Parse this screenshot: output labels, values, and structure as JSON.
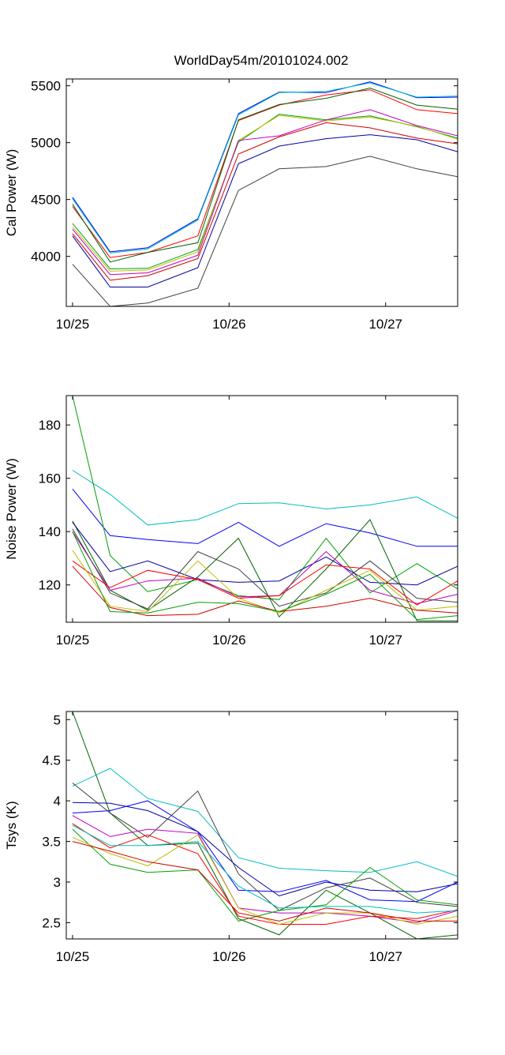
{
  "figure_title": "WorldDay54m/20101024.002",
  "series_colors": [
    "#0000ff",
    "#00a000",
    "#ff0000",
    "#00bfbf",
    "#bf00bf",
    "#bfbf00",
    "#404040",
    "#0000a0",
    "#006400",
    "#d00000"
  ],
  "chart_data": [
    {
      "type": "line",
      "title": "WorldDay54m/20101024.002",
      "ylabel": "Cal Power (W)",
      "xlabel": "",
      "x": [
        0.0,
        0.24,
        0.48,
        0.8,
        1.06,
        1.32,
        1.62,
        1.9,
        2.2,
        2.46
      ],
      "xlim": [
        -0.04,
        2.46
      ],
      "ylim": [
        3560,
        5560
      ],
      "xticks": [
        {
          "value": 0,
          "label": "10/25"
        },
        {
          "value": 1,
          "label": "10/26"
        },
        {
          "value": 2,
          "label": "10/27"
        }
      ],
      "yticks": [
        {
          "value": 4000,
          "label": "4000"
        },
        {
          "value": 4500,
          "label": "4500"
        },
        {
          "value": 5000,
          "label": "5000"
        },
        {
          "value": 5500,
          "label": "5500"
        }
      ],
      "grid": false,
      "series": [
        {
          "color": "#0000ff",
          "values": [
            4520,
            4040,
            4075,
            4330,
            5255,
            5445,
            5440,
            5535,
            5395,
            5400
          ]
        },
        {
          "color": "#00bfbf",
          "values": [
            4505,
            4030,
            4065,
            4320,
            5245,
            5440,
            5450,
            5525,
            5400,
            5410
          ]
        },
        {
          "color": "#ff0000",
          "values": [
            4440,
            3990,
            4035,
            4180,
            5195,
            5330,
            5420,
            5465,
            5290,
            5255
          ]
        },
        {
          "color": "#006400",
          "values": [
            4460,
            3950,
            4035,
            4120,
            5200,
            5335,
            5390,
            5480,
            5330,
            5295
          ]
        },
        {
          "color": "#00a000",
          "values": [
            4290,
            3890,
            3895,
            4060,
            5005,
            5250,
            5200,
            5235,
            5140,
            5040
          ]
        },
        {
          "color": "#bfbf00",
          "values": [
            4260,
            3870,
            3880,
            4040,
            5020,
            5240,
            5190,
            5225,
            5145,
            5030
          ]
        },
        {
          "color": "#bf00bf",
          "values": [
            4240,
            3840,
            3855,
            4010,
            5020,
            5060,
            5200,
            5290,
            5150,
            5060
          ]
        },
        {
          "color": "#d00000",
          "values": [
            4200,
            3790,
            3830,
            3980,
            4900,
            5050,
            5175,
            5130,
            5040,
            4990
          ]
        },
        {
          "color": "#0000a0",
          "values": [
            4180,
            3730,
            3730,
            3900,
            4815,
            4970,
            5035,
            5070,
            5025,
            4920
          ]
        },
        {
          "color": "#404040",
          "values": [
            3930,
            3560,
            3590,
            3720,
            4580,
            4770,
            4790,
            4880,
            4770,
            4700
          ]
        }
      ]
    },
    {
      "type": "line",
      "title": "",
      "ylabel": "Noise Power (W)",
      "xlabel": "",
      "x": [
        0.0,
        0.24,
        0.48,
        0.8,
        1.06,
        1.32,
        1.62,
        1.9,
        2.2,
        2.46
      ],
      "xlim": [
        -0.04,
        2.46
      ],
      "ylim": [
        106,
        191
      ],
      "xticks": [
        {
          "value": 0,
          "label": "10/25"
        },
        {
          "value": 1,
          "label": "10/26"
        },
        {
          "value": 2,
          "label": "10/27"
        }
      ],
      "yticks": [
        {
          "value": 120,
          "label": "120"
        },
        {
          "value": 140,
          "label": "140"
        },
        {
          "value": 160,
          "label": "160"
        },
        {
          "value": 180,
          "label": "180"
        }
      ],
      "grid": false,
      "series": [
        {
          "color": "#00bfbf",
          "values": [
            163,
            154,
            142.5,
            144.5,
            150.5,
            150.8,
            148.5,
            150,
            153,
            145
          ]
        },
        {
          "color": "#0000ff",
          "values": [
            156,
            138.5,
            137,
            135.5,
            143.5,
            134.5,
            143,
            139.5,
            134.5,
            134.5
          ]
        },
        {
          "color": "#00a000",
          "values": [
            191,
            131,
            117.5,
            122,
            116,
            114.5,
            137.5,
            117,
            128,
            118.5
          ]
        },
        {
          "color": "#006400",
          "values": [
            144,
            118,
            110.5,
            123,
            137.5,
            108,
            126,
            144.5,
            106.5,
            106.5
          ]
        },
        {
          "color": "#0000a0",
          "values": [
            143.5,
            125,
            129,
            122,
            121,
            121.5,
            130.5,
            121,
            120,
            127
          ]
        },
        {
          "color": "#bf00bf",
          "values": [
            140,
            118,
            121.5,
            122.5,
            115.5,
            116,
            132.5,
            118,
            113,
            116.5
          ]
        },
        {
          "color": "#404040",
          "values": [
            141,
            117,
            111,
            132.5,
            126,
            112,
            117,
            129,
            115,
            113.5
          ]
        },
        {
          "color": "#ff0000",
          "values": [
            129,
            119,
            125.5,
            122,
            115,
            116,
            127.5,
            126,
            112.5,
            121.5
          ]
        },
        {
          "color": "#bfbf00",
          "values": [
            133,
            112,
            110,
            129,
            115,
            109.5,
            118,
            125.5,
            110.5,
            112
          ]
        },
        {
          "color": "#d00000",
          "values": [
            127,
            111.5,
            108.5,
            109,
            114,
            110,
            112,
            115,
            110.5,
            109.5
          ]
        },
        {
          "color": "#00a000",
          "values": [
            140,
            110,
            109.5,
            113.5,
            113,
            110,
            116.5,
            124,
            107,
            108.5
          ]
        }
      ]
    },
    {
      "type": "line",
      "title": "",
      "ylabel": "Tsys (K)",
      "xlabel": "",
      "x": [
        0.0,
        0.24,
        0.48,
        0.8,
        1.06,
        1.32,
        1.62,
        1.9,
        2.2,
        2.46
      ],
      "xlim": [
        -0.04,
        2.46
      ],
      "ylim": [
        2.3,
        5.1
      ],
      "xticks": [
        {
          "value": 0,
          "label": "10/25"
        },
        {
          "value": 1,
          "label": "10/26"
        },
        {
          "value": 2,
          "label": "10/27"
        }
      ],
      "yticks": [
        {
          "value": 2.5,
          "label": "2.5"
        },
        {
          "value": 3,
          "label": "3"
        },
        {
          "value": 3.5,
          "label": "3.5"
        },
        {
          "value": 4,
          "label": "4"
        },
        {
          "value": 4.5,
          "label": "4.5"
        },
        {
          "value": 5,
          "label": "5"
        }
      ],
      "grid": false,
      "series": [
        {
          "color": "#00bfbf",
          "values": [
            4.18,
            4.4,
            4.03,
            3.87,
            3.3,
            3.17,
            3.14,
            3.12,
            3.25,
            3.07
          ]
        },
        {
          "color": "#006400",
          "values": [
            5.1,
            3.85,
            3.45,
            3.48,
            2.55,
            2.35,
            2.9,
            2.62,
            2.3,
            2.35
          ]
        },
        {
          "color": "#0000a0",
          "values": [
            3.98,
            3.97,
            3.88,
            3.62,
            3.18,
            2.83,
            3.0,
            2.9,
            2.88,
            2.98
          ]
        },
        {
          "color": "#0000ff",
          "values": [
            3.85,
            3.88,
            4.0,
            3.62,
            2.9,
            2.88,
            3.02,
            2.78,
            2.76,
            3.0
          ]
        },
        {
          "color": "#404040",
          "values": [
            4.22,
            3.85,
            3.55,
            4.12,
            3.1,
            2.65,
            2.93,
            3.05,
            2.75,
            2.7
          ]
        },
        {
          "color": "#bf00bf",
          "values": [
            3.82,
            3.56,
            3.65,
            3.6,
            2.68,
            2.62,
            2.62,
            2.58,
            2.5,
            2.65
          ]
        },
        {
          "color": "#00a000",
          "values": [
            3.65,
            3.22,
            3.12,
            3.15,
            2.52,
            2.65,
            2.72,
            3.18,
            2.78,
            2.72
          ]
        },
        {
          "color": "#ff0000",
          "values": [
            3.72,
            3.42,
            3.58,
            3.35,
            2.58,
            2.48,
            2.48,
            2.58,
            2.55,
            2.66
          ]
        },
        {
          "color": "#bfbf00",
          "values": [
            3.55,
            3.35,
            3.2,
            3.58,
            2.68,
            2.48,
            2.62,
            2.62,
            2.48,
            2.58
          ]
        },
        {
          "color": "#d00000",
          "values": [
            3.5,
            3.38,
            3.25,
            3.15,
            2.62,
            2.52,
            2.68,
            2.62,
            2.52,
            2.52
          ]
        },
        {
          "color": "#00bfbf",
          "values": [
            3.7,
            3.45,
            3.45,
            3.5,
            2.95,
            2.68,
            2.7,
            2.7,
            2.62,
            2.65
          ]
        }
      ]
    }
  ]
}
